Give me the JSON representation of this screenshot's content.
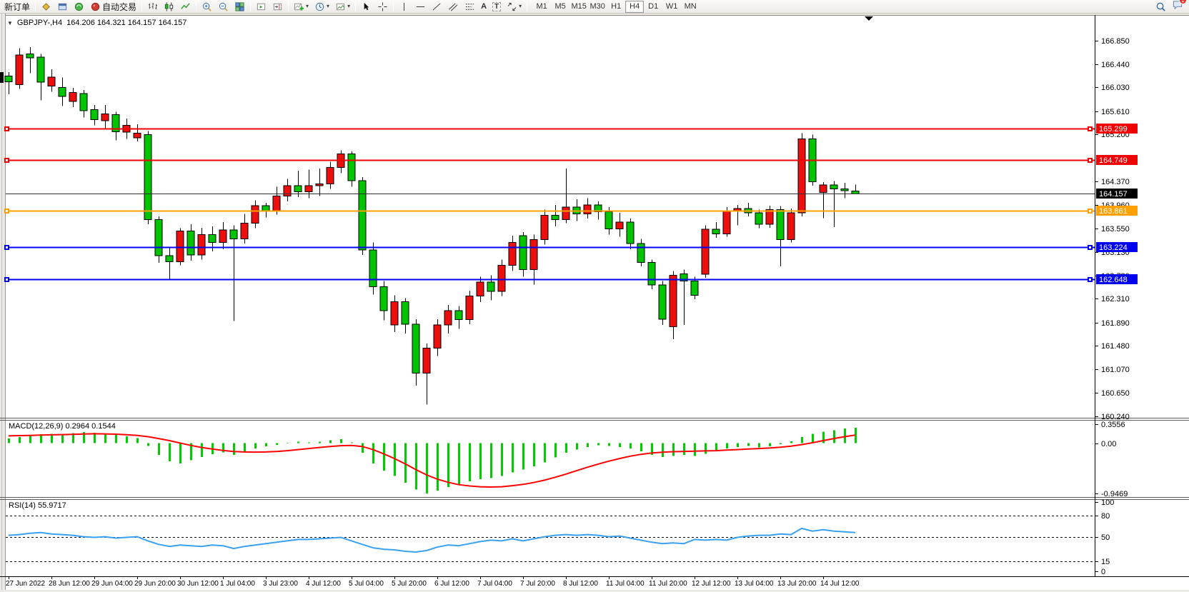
{
  "toolbar": {
    "new_order_label": "新订单",
    "autotrading_label": "自动交易",
    "timeframes": [
      "M1",
      "M5",
      "M15",
      "M30",
      "H1",
      "H4",
      "D1",
      "W1",
      "MN"
    ],
    "active_timeframe": "H4",
    "notification_count": "1"
  },
  "icons": {
    "one_click": "▼",
    "caret": "▾",
    "text_tool": "A",
    "label_tool": "T"
  },
  "chart": {
    "title": "GBPJPY-,H4",
    "ohlc": "164.206 164.321 164.157 164.157"
  },
  "chart_data": {
    "type": "candlestick",
    "symbol": "GBPJPY-",
    "timeframe": "H4",
    "current_bar": {
      "open": "164.206",
      "high": "164.321",
      "low": "164.157",
      "close": "164.157"
    },
    "colors": {
      "bull": "#ed0e0e",
      "bear": "#00c400",
      "outline": "#000000",
      "line_red": "#f00000",
      "line_blue": "#0000f0",
      "line_orange": "#ffa000",
      "bid_line": "#303030",
      "bid_badge": "#000000",
      "macd_hist": "#00cc00",
      "macd_signal": "#ff0000",
      "rsi_line": "#3aa0f0"
    },
    "price_axis_range": [
      167.29,
      160.215
    ],
    "price_axis_ticks": [
      "166.850",
      "166.440",
      "166.030",
      "165.610",
      "165.200",
      "164.370",
      "163.960",
      "163.550",
      "163.130",
      "162.720",
      "162.310",
      "161.890",
      "161.480",
      "161.070",
      "160.650",
      "160.240"
    ],
    "horizontal_lines": [
      {
        "price": 165.299,
        "label": "165.299",
        "color": "#f00000",
        "width": 2,
        "handles": true
      },
      {
        "price": 164.749,
        "label": "164.749",
        "color": "#f00000",
        "width": 2,
        "handles": true
      },
      {
        "price": 163.861,
        "label": "163.861",
        "color": "#ffa000",
        "width": 2,
        "handles": true
      },
      {
        "price": 163.224,
        "label": "163.224",
        "color": "#0000f0",
        "width": 2,
        "handles": true
      },
      {
        "price": 162.648,
        "label": "162.648",
        "color": "#0000f0",
        "width": 2,
        "handles": true
      },
      {
        "price": 164.157,
        "label": "164.157",
        "color": "#303030",
        "width": 1,
        "handles": false,
        "badge": "#000000"
      }
    ],
    "x_labels": [
      "27 Jun 2022",
      "28 Jun 12:00",
      "29 Jun 04:00",
      "29 Jun 20:00",
      "30 Jun 12:00",
      "1 Jul 04:00",
      "3 Jul 23:00",
      "4 Jul 12:00",
      "5 Jul 04:00",
      "5 Jul 20:00",
      "6 Jul 12:00",
      "7 Jul 04:00",
      "7 Jul 20:00",
      "8 Jul 12:00",
      "11 Jul 04:00",
      "11 Jul 20:00",
      "12 Jul 12:00",
      "13 Jul 04:00",
      "13 Jul 20:00",
      "14 Jul 12:00"
    ],
    "candles_per_label": 4,
    "candles_ohlc": [
      [
        166.23,
        166.3,
        165.91,
        166.13
      ],
      [
        166.08,
        166.72,
        166.0,
        166.6
      ],
      [
        166.62,
        166.74,
        166.28,
        166.55
      ],
      [
        166.56,
        166.62,
        165.8,
        166.12
      ],
      [
        166.05,
        166.35,
        165.95,
        166.21
      ],
      [
        166.03,
        166.2,
        165.7,
        165.87
      ],
      [
        165.78,
        166.02,
        165.68,
        165.94
      ],
      [
        165.92,
        165.98,
        165.5,
        165.62
      ],
      [
        165.64,
        165.72,
        165.36,
        165.46
      ],
      [
        165.44,
        165.72,
        165.3,
        165.56
      ],
      [
        165.55,
        165.6,
        165.1,
        165.25
      ],
      [
        165.24,
        165.48,
        165.12,
        165.36
      ],
      [
        165.14,
        165.38,
        165.08,
        165.22
      ],
      [
        165.2,
        165.26,
        163.62,
        163.7
      ],
      [
        163.7,
        163.76,
        162.94,
        163.07
      ],
      [
        163.07,
        163.2,
        162.66,
        162.96
      ],
      [
        162.96,
        163.55,
        162.9,
        163.5
      ],
      [
        163.5,
        163.62,
        162.98,
        163.08
      ],
      [
        163.08,
        163.56,
        163.0,
        163.44
      ],
      [
        163.44,
        163.58,
        163.14,
        163.3
      ],
      [
        163.3,
        163.66,
        163.18,
        163.52
      ],
      [
        163.52,
        163.6,
        161.92,
        163.36
      ],
      [
        163.36,
        163.8,
        163.28,
        163.64
      ],
      [
        163.64,
        164.04,
        163.55,
        163.95
      ],
      [
        163.95,
        164.0,
        163.74,
        163.85
      ],
      [
        163.85,
        164.28,
        163.79,
        164.12
      ],
      [
        164.12,
        164.42,
        164.02,
        164.3
      ],
      [
        164.3,
        164.56,
        164.1,
        164.19
      ],
      [
        164.19,
        164.58,
        164.08,
        164.3
      ],
      [
        164.3,
        164.6,
        164.12,
        164.33
      ],
      [
        164.33,
        164.72,
        164.24,
        164.62
      ],
      [
        164.62,
        164.92,
        164.52,
        164.86
      ],
      [
        164.86,
        164.9,
        164.28,
        164.39
      ],
      [
        164.39,
        164.45,
        163.08,
        163.17
      ],
      [
        163.17,
        163.3,
        162.38,
        162.52
      ],
      [
        162.52,
        162.62,
        161.93,
        162.1
      ],
      [
        161.85,
        162.37,
        161.72,
        162.26
      ],
      [
        162.26,
        162.32,
        161.7,
        161.86
      ],
      [
        161.86,
        161.95,
        160.78,
        161.0
      ],
      [
        161.0,
        161.52,
        160.45,
        161.44
      ],
      [
        161.44,
        161.95,
        161.3,
        161.85
      ],
      [
        161.85,
        162.2,
        161.7,
        162.1
      ],
      [
        162.1,
        162.18,
        161.78,
        161.94
      ],
      [
        161.94,
        162.45,
        161.86,
        162.36
      ],
      [
        162.36,
        162.7,
        162.25,
        162.6
      ],
      [
        162.6,
        162.72,
        162.28,
        162.44
      ],
      [
        162.44,
        163.0,
        162.36,
        162.9
      ],
      [
        162.9,
        163.42,
        162.8,
        163.3
      ],
      [
        163.42,
        163.48,
        162.7,
        162.82
      ],
      [
        162.82,
        163.44,
        162.56,
        163.35
      ],
      [
        163.35,
        163.88,
        163.26,
        163.78
      ],
      [
        163.78,
        163.96,
        163.58,
        163.7
      ],
      [
        163.7,
        164.6,
        163.64,
        163.92
      ],
      [
        163.92,
        164.06,
        163.68,
        163.8
      ],
      [
        163.8,
        164.08,
        163.72,
        163.96
      ],
      [
        163.96,
        164.02,
        163.7,
        163.84
      ],
      [
        163.84,
        163.92,
        163.44,
        163.54
      ],
      [
        163.54,
        163.82,
        163.4,
        163.66
      ],
      [
        163.66,
        163.72,
        163.18,
        163.28
      ],
      [
        163.28,
        163.36,
        162.88,
        162.95
      ],
      [
        162.95,
        163.0,
        162.48,
        162.55
      ],
      [
        162.55,
        162.62,
        161.85,
        161.95
      ],
      [
        161.82,
        162.8,
        161.6,
        162.72
      ],
      [
        162.75,
        162.82,
        161.85,
        162.62
      ],
      [
        162.62,
        162.7,
        162.3,
        162.37
      ],
      [
        162.74,
        163.6,
        162.68,
        163.53
      ],
      [
        163.53,
        163.66,
        163.38,
        163.45
      ],
      [
        163.45,
        163.92,
        163.4,
        163.86
      ],
      [
        163.86,
        163.96,
        163.6,
        163.9
      ],
      [
        163.9,
        164.0,
        163.76,
        163.82
      ],
      [
        163.82,
        163.88,
        163.55,
        163.62
      ],
      [
        163.62,
        163.95,
        163.56,
        163.88
      ],
      [
        163.88,
        163.94,
        162.88,
        163.35
      ],
      [
        163.35,
        163.9,
        163.3,
        163.82
      ],
      [
        163.82,
        165.22,
        163.76,
        165.12
      ],
      [
        165.12,
        165.2,
        164.3,
        164.37
      ],
      [
        164.18,
        164.36,
        163.73,
        164.31
      ],
      [
        164.31,
        164.38,
        163.57,
        164.24
      ],
      [
        164.24,
        164.35,
        164.08,
        164.21
      ],
      [
        164.206,
        164.321,
        164.157,
        164.157
      ]
    ],
    "macd": {
      "label": "MACD(12,26,9)",
      "values_label": "0.2964 0.1544",
      "axis_range": [
        0.43,
        -1.02
      ],
      "axis_ticks": [
        {
          "v": 0.3556,
          "label": "0.3556"
        },
        {
          "v": 0,
          "label": "0.00"
        },
        {
          "v": -0.9469,
          "label": "-0.9469"
        }
      ],
      "histogram": [
        0.09,
        0.12,
        0.15,
        0.17,
        0.18,
        0.16,
        0.19,
        0.21,
        0.2,
        0.18,
        0.16,
        0.13,
        0.1,
        -0.05,
        -0.22,
        -0.34,
        -0.38,
        -0.32,
        -0.26,
        -0.21,
        -0.17,
        -0.22,
        -0.15,
        -0.1,
        -0.06,
        -0.03,
        0.01,
        0.03,
        0.02,
        0.03,
        0.06,
        0.08,
        0.02,
        -0.18,
        -0.38,
        -0.52,
        -0.62,
        -0.75,
        -0.88,
        -0.95,
        -0.9,
        -0.83,
        -0.78,
        -0.72,
        -0.68,
        -0.66,
        -0.62,
        -0.55,
        -0.5,
        -0.44,
        -0.36,
        -0.27,
        -0.18,
        -0.12,
        -0.07,
        -0.04,
        -0.05,
        -0.07,
        -0.1,
        -0.15,
        -0.22,
        -0.26,
        -0.24,
        -0.22,
        -0.24,
        -0.2,
        -0.14,
        -0.1,
        -0.07,
        -0.05,
        -0.08,
        -0.06,
        -0.02,
        0.04,
        0.12,
        0.18,
        0.22,
        0.25,
        0.28,
        0.2964
      ],
      "signal": [
        0.14,
        0.145,
        0.15,
        0.155,
        0.16,
        0.165,
        0.17,
        0.175,
        0.18,
        0.178,
        0.172,
        0.162,
        0.148,
        0.125,
        0.09,
        0.05,
        0.005,
        -0.04,
        -0.08,
        -0.11,
        -0.135,
        -0.155,
        -0.165,
        -0.168,
        -0.165,
        -0.155,
        -0.14,
        -0.12,
        -0.1,
        -0.08,
        -0.06,
        -0.045,
        -0.04,
        -0.06,
        -0.12,
        -0.2,
        -0.29,
        -0.39,
        -0.5,
        -0.6,
        -0.68,
        -0.74,
        -0.785,
        -0.81,
        -0.825,
        -0.83,
        -0.825,
        -0.805,
        -0.78,
        -0.745,
        -0.7,
        -0.645,
        -0.585,
        -0.52,
        -0.455,
        -0.395,
        -0.34,
        -0.29,
        -0.245,
        -0.21,
        -0.185,
        -0.17,
        -0.16,
        -0.155,
        -0.15,
        -0.145,
        -0.14,
        -0.13,
        -0.12,
        -0.11,
        -0.1,
        -0.09,
        -0.075,
        -0.055,
        -0.025,
        0.01,
        0.05,
        0.09,
        0.125,
        0.1544
      ]
    },
    "rsi": {
      "label": "RSI(14)",
      "value_label": "55.9717",
      "axis_range": [
        103,
        -7
      ],
      "axis_ticks": [
        {
          "v": 100,
          "label": "100"
        },
        {
          "v": 80,
          "label": "80"
        },
        {
          "v": 50,
          "label": "50"
        },
        {
          "v": 15,
          "label": "15"
        },
        {
          "v": 0,
          "label": "0"
        }
      ],
      "levels": [
        80,
        50,
        15
      ],
      "series": [
        52,
        53,
        55,
        56,
        54,
        53,
        52,
        50,
        49,
        50,
        48,
        49,
        50,
        44,
        39,
        36,
        38,
        37,
        36,
        38,
        37,
        33,
        36,
        38,
        40,
        42,
        44,
        46,
        46,
        47,
        48,
        49,
        44,
        39,
        34,
        32,
        31,
        29,
        28,
        30,
        35,
        38,
        37,
        40,
        43,
        45,
        44,
        47,
        44,
        47,
        50,
        52,
        53,
        52,
        53,
        52,
        50,
        51,
        48,
        45,
        42,
        40,
        41,
        40,
        46,
        45,
        46,
        45,
        49,
        51,
        52,
        52,
        54,
        53,
        62,
        58,
        60,
        58,
        57,
        55.97
      ]
    }
  }
}
